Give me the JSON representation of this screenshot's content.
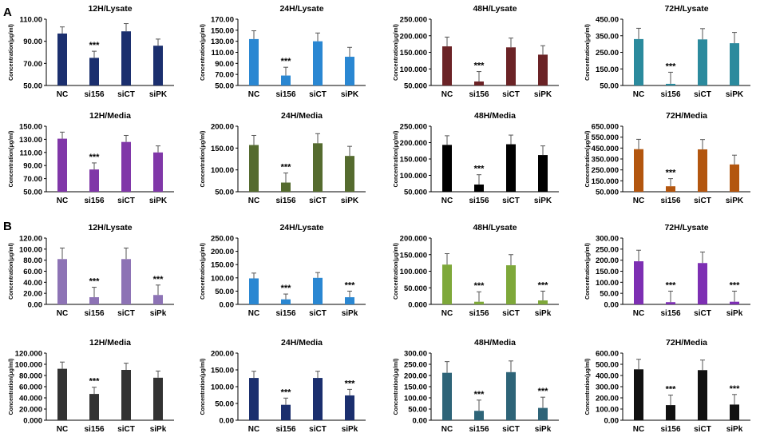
{
  "figure": {
    "panel_labels": [
      "A",
      "B"
    ],
    "series_name": ""
  },
  "chart_data": [
    {
      "type": "bar",
      "title": "12H/Lysate",
      "ylabel": "Concentration(μg/ml)",
      "categories": [
        "NC",
        "si156",
        "siCT",
        "siPK"
      ],
      "values": [
        97,
        75,
        99,
        86
      ],
      "errors": [
        6,
        6,
        7,
        6
      ],
      "ticks": [
        "50.00",
        "70.00",
        "90.00",
        "110.00"
      ],
      "ylim": [
        50,
        110
      ],
      "color": "#1b2f6e",
      "annotations": [
        "",
        "***",
        "",
        ""
      ]
    },
    {
      "type": "bar",
      "title": "24H/Lysate",
      "ylabel": "Concentration(μg/ml)",
      "categories": [
        "NC",
        "si156",
        "siCT",
        "siPK"
      ],
      "values": [
        134,
        68,
        130,
        102
      ],
      "errors": [
        15,
        15,
        15,
        17
      ],
      "ticks": [
        "50.00",
        "70.00",
        "90.00",
        "110.00",
        "130.00",
        "150.00",
        "170.00"
      ],
      "ylim": [
        50,
        170
      ],
      "color": "#2a87d2",
      "annotations": [
        "",
        "***",
        "",
        ""
      ]
    },
    {
      "type": "bar",
      "title": "48H/Lysate",
      "ylabel": "Concentration(μg/ml)",
      "categories": [
        "NC",
        "si156",
        "siCT",
        "siPK"
      ],
      "values": [
        168,
        62,
        165,
        143
      ],
      "errors": [
        28,
        30,
        28,
        27
      ],
      "ticks": [
        "50.000",
        "100.000",
        "150.000",
        "200.000",
        "250.000"
      ],
      "ylim": [
        50,
        250
      ],
      "color": "#6b2326",
      "annotations": [
        "",
        "***",
        "",
        ""
      ]
    },
    {
      "type": "bar",
      "title": "72H/Lysate",
      "ylabel": "Concentration(μg/ml)",
      "categories": [
        "NC",
        "si156",
        "siCT",
        "siPK"
      ],
      "values": [
        330,
        60,
        328,
        305
      ],
      "errors": [
        65,
        70,
        65,
        65
      ],
      "ticks": [
        "50.00",
        "150.00",
        "250.00",
        "350.00",
        "450.00"
      ],
      "ylim": [
        50,
        450
      ],
      "color": "#2b8a9d",
      "annotations": [
        "",
        "***",
        "",
        ""
      ]
    },
    {
      "type": "bar",
      "title": "12H/Media",
      "ylabel": "Concentration(μg/ml)",
      "categories": [
        "NC",
        "si156",
        "siCT",
        "siPK"
      ],
      "values": [
        131,
        84,
        126,
        110
      ],
      "errors": [
        10,
        10,
        10,
        10
      ],
      "ticks": [
        "50.00",
        "70.00",
        "90.00",
        "110.00",
        "130.00",
        "150.00"
      ],
      "ylim": [
        50,
        150
      ],
      "color": "#8037a8",
      "annotations": [
        "",
        "***",
        "",
        ""
      ]
    },
    {
      "type": "bar",
      "title": "24H/Media",
      "ylabel": "Concentration(μg/ml)",
      "categories": [
        "NC",
        "si156",
        "siCT",
        "siPK"
      ],
      "values": [
        157,
        71,
        161,
        132
      ],
      "errors": [
        22,
        22,
        22,
        22
      ],
      "ticks": [
        "50.00",
        "100.00",
        "150.00",
        "200.00"
      ],
      "ylim": [
        50,
        200
      ],
      "color": "#556b2f",
      "annotations": [
        "",
        "***",
        "",
        ""
      ]
    },
    {
      "type": "bar",
      "title": "48H/Media",
      "ylabel": "Concentration(μg/ml)",
      "categories": [
        "NC",
        "si156",
        "siCT",
        "siPK"
      ],
      "values": [
        193,
        72,
        195,
        162
      ],
      "errors": [
        28,
        30,
        28,
        28
      ],
      "ticks": [
        "50.000",
        "100.000",
        "150.000",
        "200.000",
        "250.000"
      ],
      "ylim": [
        50,
        250
      ],
      "color": "#000000",
      "annotations": [
        "",
        "***",
        "",
        ""
      ]
    },
    {
      "type": "bar",
      "title": "72H/Media",
      "ylabel": "Concentration(μg/ml)",
      "categories": [
        "NC",
        "si156",
        "siCT",
        "siPK"
      ],
      "values": [
        440,
        100,
        438,
        300
      ],
      "errors": [
        90,
        70,
        90,
        85
      ],
      "ticks": [
        "50.000",
        "150.000",
        "250.000",
        "350.000",
        "450.000",
        "550.000",
        "650.000"
      ],
      "ylim": [
        50,
        650
      ],
      "color": "#b3560f",
      "annotations": [
        "",
        "***",
        "",
        ""
      ]
    },
    {
      "type": "bar",
      "title": "12H/Lysate",
      "ylabel": "Concentration(μg/ml)",
      "categories": [
        "NC",
        "si156",
        "siCT",
        "siPk"
      ],
      "values": [
        82,
        13,
        82,
        17
      ],
      "errors": [
        20,
        18,
        20,
        18
      ],
      "ticks": [
        "0.00",
        "20.00",
        "40.00",
        "60.00",
        "80.00",
        "100.00",
        "120.00"
      ],
      "ylim": [
        0,
        120
      ],
      "color": "#8d73b5",
      "annotations": [
        "",
        "***",
        "",
        "***"
      ]
    },
    {
      "type": "bar",
      "title": "24H/Lysate",
      "ylabel": "Concentration(μg/ml)",
      "categories": [
        "NC",
        "si156",
        "siCT",
        "siPk"
      ],
      "values": [
        98,
        19,
        100,
        27
      ],
      "errors": [
        20,
        20,
        20,
        23
      ],
      "ticks": [
        "0.00",
        "50.00",
        "100.00",
        "150.00",
        "200.00",
        "250.00"
      ],
      "ylim": [
        0,
        250
      ],
      "color": "#2a87d2",
      "annotations": [
        "",
        "***",
        "",
        "***"
      ]
    },
    {
      "type": "bar",
      "title": "48H/Lysate",
      "ylabel": "Concentration(μg/ml)",
      "categories": [
        "NC",
        "si156",
        "siCT",
        "siPk"
      ],
      "values": [
        120,
        8,
        118,
        12
      ],
      "errors": [
        33,
        30,
        32,
        28
      ],
      "ticks": [
        "0.000",
        "50.000",
        "100.000",
        "150.000",
        "200.000"
      ],
      "ylim": [
        0,
        200
      ],
      "color": "#7ea83a",
      "annotations": [
        "",
        "***",
        "",
        "***"
      ]
    },
    {
      "type": "bar",
      "title": "72H/Lysate",
      "ylabel": "Concentration(μg/ml)",
      "categories": [
        "NC",
        "si156",
        "siCT",
        "siPk"
      ],
      "values": [
        195,
        10,
        187,
        12
      ],
      "errors": [
        50,
        50,
        50,
        48
      ],
      "ticks": [
        "0.00",
        "50.00",
        "100.00",
        "150.00",
        "200.00",
        "250.00",
        "300.00"
      ],
      "ylim": [
        0,
        300
      ],
      "color": "#7d2fb3",
      "annotations": [
        "",
        "***",
        "",
        "***"
      ]
    },
    {
      "type": "bar",
      "title": "12H/Media",
      "ylabel": "Concentration(μg/ml)",
      "categories": [
        "NC",
        "si156",
        "siCT",
        "siPk"
      ],
      "values": [
        92,
        47,
        90,
        76
      ],
      "errors": [
        12,
        12,
        12,
        12
      ],
      "ticks": [
        "0.000",
        "20.000",
        "40.000",
        "60.000",
        "80.000",
        "100.000",
        "120.000"
      ],
      "ylim": [
        0,
        120
      ],
      "color": "#333333",
      "annotations": [
        "",
        "***",
        "",
        ""
      ]
    },
    {
      "type": "bar",
      "title": "24H/Media",
      "ylabel": "Concentration(μg/ml)",
      "categories": [
        "NC",
        "si156",
        "siCT",
        "siPk"
      ],
      "values": [
        126,
        46,
        126,
        74
      ],
      "errors": [
        20,
        20,
        20,
        18
      ],
      "ticks": [
        "0.00",
        "50.00",
        "100.00",
        "150.00",
        "200.00"
      ],
      "ylim": [
        0,
        200
      ],
      "color": "#1b2f6e",
      "annotations": [
        "",
        "***",
        "",
        "***"
      ]
    },
    {
      "type": "bar",
      "title": "48H/Media",
      "ylabel": "Concentration(μg/ml)",
      "categories": [
        "NC",
        "si156",
        "siCT",
        "siPk"
      ],
      "values": [
        212,
        42,
        215,
        55
      ],
      "errors": [
        50,
        48,
        50,
        48
      ],
      "ticks": [
        "0.00",
        "50.00",
        "100.00",
        "150.00",
        "200.00",
        "250.00",
        "300.00"
      ],
      "ylim": [
        0,
        300
      ],
      "color": "#2e6478",
      "annotations": [
        "",
        "***",
        "",
        "***"
      ]
    },
    {
      "type": "bar",
      "title": "72H/Media",
      "ylabel": "Concentration(μg/ml)",
      "categories": [
        "NC",
        "si156",
        "siCT",
        "siPk"
      ],
      "values": [
        455,
        135,
        448,
        140
      ],
      "errors": [
        90,
        90,
        90,
        90
      ],
      "ticks": [
        "0.00",
        "100.00",
        "200.00",
        "300.00",
        "400.00",
        "500.00",
        "600.00"
      ],
      "ylim": [
        0,
        600
      ],
      "color": "#111111",
      "annotations": [
        "",
        "***",
        "",
        "***"
      ]
    }
  ]
}
